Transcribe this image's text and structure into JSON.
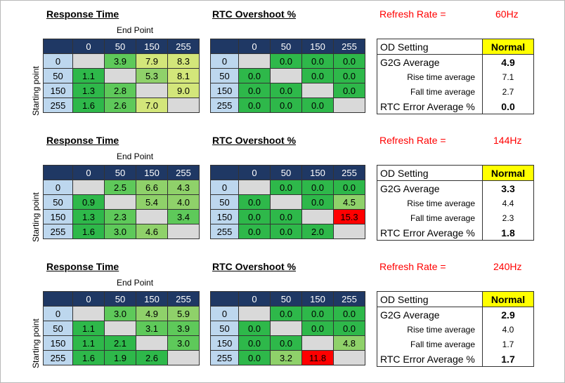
{
  "labels": {
    "response_time": "Response Time",
    "rtc_overshoot": "RTC Overshoot %",
    "end_point": "End Point",
    "starting_point": "Starting point",
    "refresh_rate": "Refresh Rate =",
    "od_setting": "OD Setting",
    "g2g_average": "G2G Average",
    "rise_time_average": "Rise time average",
    "fall_time_average": "Fall time average",
    "rtc_error_average": "RTC Error Average %"
  },
  "columns": [
    "0",
    "50",
    "150",
    "255"
  ],
  "rows": [
    "0",
    "50",
    "150",
    "255"
  ],
  "colors": {
    "header_bg": "#1f3864",
    "row_header_bg": "#bdd7ee",
    "empty": "#d9d9d9",
    "highlight": "#ffff00",
    "alert": "#ff0000"
  },
  "sections": [
    {
      "refresh_rate": "60Hz",
      "response_time": [
        [
          "",
          "3.9",
          "7.9",
          "8.3"
        ],
        [
          "1.1",
          "",
          "5.3",
          "8.1"
        ],
        [
          "1.3",
          "2.8",
          "",
          "9.0"
        ],
        [
          "1.6",
          "2.6",
          "7.0",
          ""
        ]
      ],
      "overshoot": [
        [
          "",
          "0.0",
          "0.0",
          "0.0"
        ],
        [
          "0.0",
          "",
          "0.0",
          "0.0"
        ],
        [
          "0.0",
          "0.0",
          "",
          "0.0"
        ],
        [
          "0.0",
          "0.0",
          "0.0",
          ""
        ]
      ],
      "summary": {
        "od_setting": "Normal",
        "g2g_average": "4.9",
        "rise_time_average": "7.1",
        "fall_time_average": "2.7",
        "rtc_error_average": "0.0"
      }
    },
    {
      "refresh_rate": "144Hz",
      "response_time": [
        [
          "",
          "2.5",
          "6.6",
          "4.3"
        ],
        [
          "0.9",
          "",
          "5.4",
          "4.0"
        ],
        [
          "1.3",
          "2.3",
          "",
          "3.4"
        ],
        [
          "1.6",
          "3.0",
          "4.6",
          ""
        ]
      ],
      "overshoot": [
        [
          "",
          "0.0",
          "0.0",
          "0.0"
        ],
        [
          "0.0",
          "",
          "0.0",
          "4.5"
        ],
        [
          "0.0",
          "0.0",
          "",
          "15.3"
        ],
        [
          "0.0",
          "0.0",
          "2.0",
          ""
        ]
      ],
      "summary": {
        "od_setting": "Normal",
        "g2g_average": "3.3",
        "rise_time_average": "4.4",
        "fall_time_average": "2.3",
        "rtc_error_average": "1.8"
      }
    },
    {
      "refresh_rate": "240Hz",
      "response_time": [
        [
          "",
          "3.0",
          "4.9",
          "5.9"
        ],
        [
          "1.1",
          "",
          "3.1",
          "3.9"
        ],
        [
          "1.1",
          "2.1",
          "",
          "3.0"
        ],
        [
          "1.6",
          "1.9",
          "2.6",
          ""
        ]
      ],
      "overshoot": [
        [
          "",
          "0.0",
          "0.0",
          "0.0"
        ],
        [
          "0.0",
          "",
          "0.0",
          "0.0"
        ],
        [
          "0.0",
          "0.0",
          "",
          "4.8"
        ],
        [
          "0.0",
          "3.2",
          "11.8",
          ""
        ]
      ],
      "summary": {
        "od_setting": "Normal",
        "g2g_average": "2.9",
        "rise_time_average": "4.0",
        "fall_time_average": "1.7",
        "rtc_error_average": "1.7"
      }
    }
  ]
}
